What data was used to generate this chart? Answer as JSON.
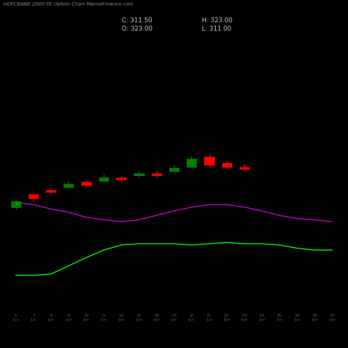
{
  "title": "HDFCBANK 2000 PE Option Chart ManseFinance.com",
  "background_color": "#000000",
  "text_color": "#aaaaaa",
  "green_line_color": "#00ff00",
  "magenta_line_color": "#cc00cc",
  "dates": [
    "6\nJun",
    "7\nJun",
    "8\nJun",
    "9\nJun",
    "10\nJun",
    "11\nJun",
    "14\nJun",
    "15\nJun",
    "16\nJun",
    "17\nJun",
    "18\nJun",
    "21\nJun",
    "22\nJun",
    "23\nJun",
    "24\nJun",
    "25\nJun",
    "28\nJun",
    "29\nJun",
    "30\nJun"
  ],
  "candles": [
    {
      "open": 178,
      "close": 168,
      "high": 180,
      "low": 165,
      "color": "green"
    },
    {
      "open": 182,
      "close": 188,
      "high": 190,
      "low": 178,
      "color": "red"
    },
    {
      "open": 192,
      "close": 195,
      "high": 198,
      "low": 190,
      "color": "red"
    },
    {
      "open": 200,
      "close": 205,
      "high": 210,
      "low": 198,
      "color": "green"
    },
    {
      "open": 208,
      "close": 203,
      "high": 212,
      "low": 200,
      "color": "red"
    },
    {
      "open": 210,
      "close": 215,
      "high": 220,
      "low": 208,
      "color": "green"
    },
    {
      "open": 215,
      "close": 212,
      "high": 218,
      "low": 208,
      "color": "red"
    },
    {
      "open": 218,
      "close": 222,
      "high": 225,
      "low": 216,
      "color": "green"
    },
    {
      "open": 222,
      "close": 218,
      "high": 226,
      "low": 215,
      "color": "red"
    },
    {
      "open": 225,
      "close": 230,
      "high": 235,
      "low": 222,
      "color": "green"
    },
    {
      "open": 232,
      "close": 245,
      "high": 248,
      "low": 230,
      "color": "green"
    },
    {
      "open": 248,
      "close": 235,
      "high": 252,
      "low": 232,
      "color": "red"
    },
    {
      "open": 238,
      "close": 232,
      "high": 242,
      "low": 228,
      "color": "red"
    },
    {
      "open": 232,
      "close": 228,
      "high": 236,
      "low": 225,
      "color": "red"
    },
    {
      "open": 0,
      "close": 0,
      "high": 0,
      "low": 0,
      "color": "none"
    },
    {
      "open": 0,
      "close": 0,
      "high": 0,
      "low": 0,
      "color": "none"
    },
    {
      "open": 0,
      "close": 0,
      "high": 0,
      "low": 0,
      "color": "none"
    },
    {
      "open": 0,
      "close": 0,
      "high": 0,
      "low": 0,
      "color": "none"
    },
    {
      "open": 0,
      "close": 0,
      "high": 0,
      "low": 0,
      "color": "none"
    }
  ],
  "green_line_y": [
    60,
    60,
    62,
    75,
    88,
    100,
    108,
    110,
    110,
    110,
    108,
    110,
    112,
    110,
    110,
    108,
    103,
    100,
    100
  ],
  "magenta_line_y": [
    175,
    172,
    165,
    160,
    152,
    148,
    145,
    148,
    155,
    162,
    168,
    172,
    172,
    168,
    162,
    155,
    150,
    148,
    145
  ],
  "ylim_data": [
    0,
    430
  ],
  "figsize": [
    5.0,
    5.0
  ],
  "dpi": 100,
  "C": "311.50",
  "O": "323.00",
  "H": "323.00",
  "L": "311.00"
}
